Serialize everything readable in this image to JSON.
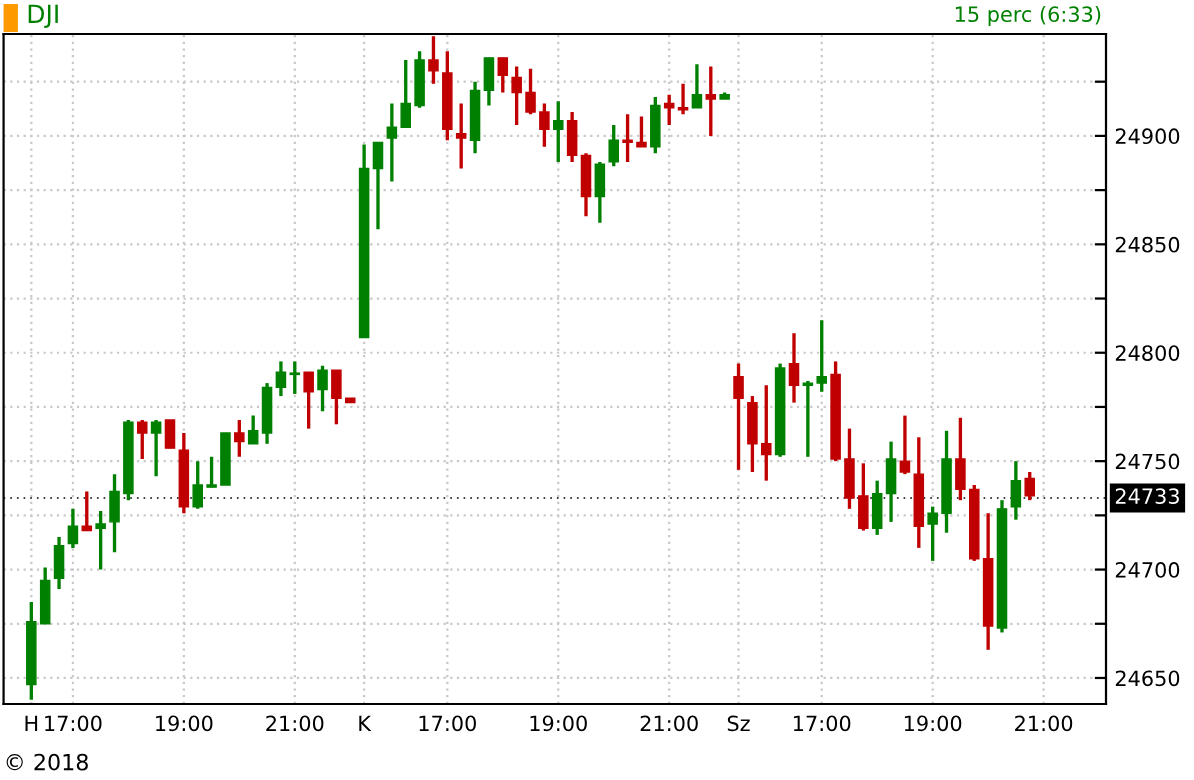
{
  "chart_data": {
    "type": "candlestick",
    "title": "DJI",
    "subtitle": "15 perc (6:33)",
    "annotations": [
      "© 2018"
    ],
    "categories": [
      "H",
      null,
      null,
      "17:00",
      null,
      null,
      null,
      null,
      null,
      null,
      null,
      "19:00",
      null,
      null,
      null,
      null,
      null,
      null,
      null,
      "21:00",
      null,
      null,
      null,
      null,
      "K",
      null,
      null,
      null,
      null,
      null,
      "17:00",
      null,
      null,
      null,
      null,
      null,
      null,
      null,
      "19:00",
      null,
      null,
      null,
      null,
      null,
      null,
      null,
      "21:00",
      null,
      null,
      null,
      null,
      "Sz",
      null,
      null,
      null,
      null,
      null,
      "17:00",
      null,
      null,
      null,
      null,
      null,
      null,
      null,
      "19:00",
      null,
      null,
      null,
      null,
      null,
      null,
      null,
      "21:00"
    ],
    "ohlc": [
      [
        24647,
        24685,
        24640,
        24676
      ],
      [
        24675,
        24701,
        24675,
        24695
      ],
      [
        24696,
        24715,
        24691,
        24711
      ],
      [
        24712,
        24728,
        24710,
        24720
      ],
      [
        24720,
        24736,
        24718,
        24718
      ],
      [
        24719,
        24727,
        24700,
        24721
      ],
      [
        24722,
        24744,
        24708,
        24736
      ],
      [
        24735,
        24769,
        24732,
        24768
      ],
      [
        24768,
        24769,
        24751,
        24763
      ],
      [
        24763,
        24769,
        24743,
        24768
      ],
      [
        24769,
        24769,
        24756,
        24756
      ],
      [
        24755,
        24763,
        24726,
        24729
      ],
      [
        24729,
        24750,
        24728,
        24739
      ],
      [
        24738,
        24752,
        24738,
        24739
      ],
      [
        24739,
        24763,
        24739,
        24763
      ],
      [
        24763,
        24769,
        24752,
        24759
      ],
      [
        24758,
        24771,
        24758,
        24764
      ],
      [
        24763,
        24786,
        24758,
        24784
      ],
      [
        24784,
        24796,
        24780,
        24791
      ],
      [
        24790,
        24796,
        24781,
        24790.5
      ],
      [
        24791,
        24791,
        24765,
        24782
      ],
      [
        24783,
        24794,
        24773,
        24792
      ],
      [
        24792,
        24792,
        24767,
        24779
      ],
      [
        24779,
        24779,
        24777,
        24777
      ],
      [
        24807,
        24896,
        24807,
        24885
      ],
      [
        24885,
        24897,
        24857,
        24897
      ],
      [
        24899,
        24915,
        24879,
        24904
      ],
      [
        24904,
        24935,
        24904,
        24915
      ],
      [
        24914,
        24939,
        24913,
        24935
      ],
      [
        24935,
        24946,
        24924,
        24930
      ],
      [
        24929,
        24939,
        24898,
        24903
      ],
      [
        24901,
        24915,
        24885,
        24899
      ],
      [
        24898,
        24925,
        24892,
        24921
      ],
      [
        24921,
        24936,
        24914,
        24936
      ],
      [
        24936,
        24936,
        24920,
        24928
      ],
      [
        24927,
        24932,
        24905,
        24920
      ],
      [
        24920,
        24931,
        24910,
        24911
      ],
      [
        24911,
        24915,
        24895,
        24903
      ],
      [
        24903,
        24916,
        24888,
        24907
      ],
      [
        24907,
        24911,
        24888,
        24891
      ],
      [
        24891,
        24892,
        24863,
        24872
      ],
      [
        24872,
        24888,
        24860,
        24887
      ],
      [
        24888,
        24905,
        24886,
        24898
      ],
      [
        24898,
        24910,
        24888,
        24897
      ],
      [
        24897,
        24909,
        24895,
        24895
      ],
      [
        24895,
        24918,
        24892,
        24914
      ],
      [
        24915,
        24919,
        24905,
        24913
      ],
      [
        24913,
        24924,
        24910,
        24912
      ],
      [
        24913,
        24933,
        24913,
        24919
      ],
      [
        24919,
        24932,
        24900,
        24917
      ],
      [
        24917,
        24920,
        24917,
        24919
      ],
      [
        24789,
        24795,
        24746,
        24779
      ],
      [
        24777,
        24780,
        24745,
        24758
      ],
      [
        24758,
        24785,
        24741,
        24753
      ],
      [
        24753,
        24795,
        24752,
        24793
      ],
      [
        24795,
        24809,
        24777,
        24785
      ],
      [
        24785,
        24787,
        24752,
        24786
      ],
      [
        24786,
        24815,
        24782,
        24789
      ],
      [
        24790,
        24796,
        24750,
        24751
      ],
      [
        24751,
        24765,
        24728,
        24733
      ],
      [
        24734,
        24749,
        24718,
        24719
      ],
      [
        24719,
        24741,
        24716,
        24735
      ],
      [
        24735,
        24759,
        24722,
        24751
      ],
      [
        24750,
        24771,
        24744,
        24745
      ],
      [
        24744,
        24761,
        24710,
        24720
      ],
      [
        24721,
        24729,
        24704,
        24726
      ],
      [
        24726,
        24764,
        24717,
        24751
      ],
      [
        24751,
        24770,
        24732,
        24737
      ],
      [
        24737,
        24739,
        24704,
        24705
      ],
      [
        24705,
        24726,
        24663,
        24674
      ],
      [
        24673,
        24732,
        24671,
        24728
      ],
      [
        24729,
        24750,
        24723,
        24741
      ],
      [
        24742,
        24745,
        24732,
        24734
      ],
      null
    ],
    "colors": [
      "#008000",
      "#008000",
      "#008000",
      "#008000",
      "#c00000",
      "#008000",
      "#008000",
      "#008000",
      "#c00000",
      "#008000",
      "#c00000",
      "#c00000",
      "#008000",
      "#008000",
      "#008000",
      "#c00000",
      "#008000",
      "#008000",
      "#008000",
      "#008000",
      "#c00000",
      "#008000",
      "#c00000",
      "#c00000",
      "#008000",
      "#008000",
      "#008000",
      "#008000",
      "#008000",
      "#c00000",
      "#c00000",
      "#c00000",
      "#008000",
      "#008000",
      "#c00000",
      "#c00000",
      "#c00000",
      "#c00000",
      "#008000",
      "#c00000",
      "#c00000",
      "#008000",
      "#008000",
      "#c00000",
      "#c00000",
      "#008000",
      "#c00000",
      "#c00000",
      "#008000",
      "#c00000",
      "#008000",
      "#c00000",
      "#c00000",
      "#c00000",
      "#008000",
      "#c00000",
      "#008000",
      "#008000",
      "#c00000",
      "#c00000",
      "#c00000",
      "#008000",
      "#008000",
      "#c00000",
      "#c00000",
      "#008000",
      "#008000",
      "#c00000",
      "#c00000",
      "#c00000",
      "#008000",
      "#008000",
      "#c00000",
      null
    ],
    "ylim": [
      24638,
      24947
    ],
    "yticks": [
      24650,
      {
        "value": 24675,
        "label": null
      },
      24700,
      {
        "value": 24725,
        "label": null
      },
      24750,
      {
        "value": 24775,
        "label": null
      },
      24800,
      {
        "value": 24825,
        "label": null
      },
      24850,
      {
        "value": 24875,
        "label": null
      },
      24900,
      {
        "value": 24925,
        "label": null
      }
    ],
    "ref_lines": [
      {
        "axis": "y",
        "value": 24733,
        "label": "24733"
      }
    ],
    "grid": true
  }
}
